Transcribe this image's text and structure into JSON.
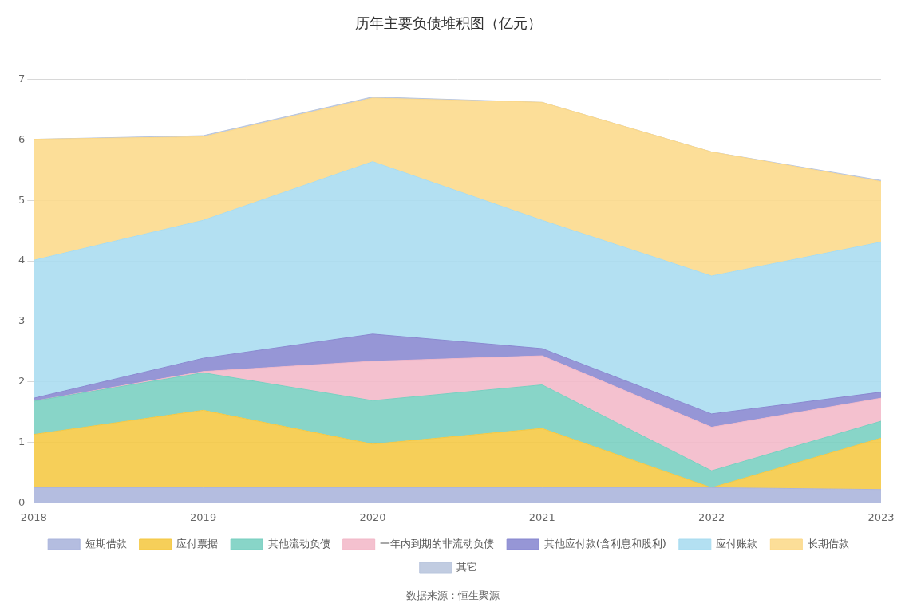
{
  "chart_data": {
    "type": "area",
    "stacked": true,
    "title": "历年主要负债堆积图（亿元）",
    "annotations": [
      "数据来源：恒生聚源"
    ],
    "x": [
      2018,
      2019,
      2020,
      2021,
      2022,
      2023
    ],
    "xlim": [
      2018,
      2023
    ],
    "xticks": [
      2018,
      2019,
      2020,
      2021,
      2022,
      2023
    ],
    "series": [
      {
        "name": "短期借款",
        "color": "#aab4dc",
        "values": [
          0.25,
          0.25,
          0.25,
          0.25,
          0.25,
          0.22
        ]
      },
      {
        "name": "应付票据",
        "color": "#f5c842",
        "values": [
          0.88,
          1.28,
          0.72,
          0.98,
          0.0,
          0.85
        ]
      },
      {
        "name": "其他流动负债",
        "color": "#78cfc0",
        "values": [
          0.55,
          0.62,
          0.72,
          0.72,
          0.28,
          0.28
        ]
      },
      {
        "name": "一年内到期的非流动负债",
        "color": "#f2b8c8",
        "values": [
          0.0,
          0.02,
          0.65,
          0.48,
          0.72,
          0.38
        ]
      },
      {
        "name": "其他应付款(含利息和股利)",
        "color": "#8888d0",
        "values": [
          0.05,
          0.22,
          0.45,
          0.12,
          0.22,
          0.1
        ]
      },
      {
        "name": "应付账款",
        "color": "#a8dcf0",
        "values": [
          2.28,
          2.28,
          2.85,
          2.12,
          2.28,
          2.48
        ]
      },
      {
        "name": "长期借款",
        "color": "#fcd98a",
        "values": [
          2.0,
          1.38,
          1.05,
          1.95,
          2.05,
          1.0
        ]
      },
      {
        "name": "其它",
        "color": "#b8c5dd",
        "values": [
          0.0,
          0.02,
          0.02,
          0.0,
          0.0,
          0.02
        ]
      }
    ],
    "ylim": [
      0,
      7.5
    ],
    "yticks": [
      0,
      1,
      2,
      3,
      4,
      5,
      6,
      7
    ],
    "grid": true,
    "legend": "bottom"
  }
}
